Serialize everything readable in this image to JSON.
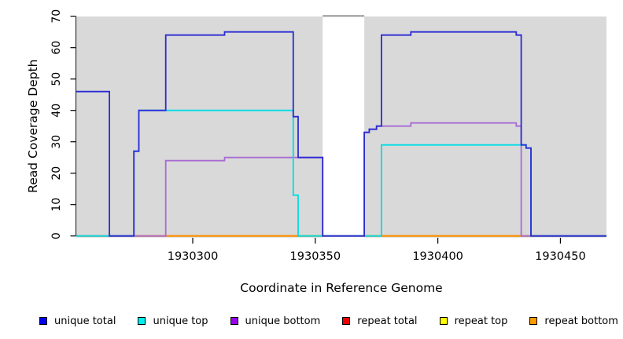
{
  "chart_data": {
    "type": "line",
    "subtype": "step-coverage",
    "title": "",
    "xlabel": "Coordinate in Reference Genome",
    "ylabel": "Read Coverage Depth",
    "xlim": [
      1930252.5,
      1930468.8
    ],
    "ylim": [
      0,
      70
    ],
    "x_ticks": [
      1930300,
      1930350,
      1930400,
      1930450
    ],
    "x_tick_labels": [
      "1930300",
      "1930350",
      "1930400",
      "1930450"
    ],
    "y_ticks": [
      0,
      10,
      20,
      30,
      40,
      50,
      60,
      70
    ],
    "y_tick_labels": [
      "0",
      "10",
      "20",
      "30",
      "40",
      "50",
      "60",
      "70"
    ],
    "grid": false,
    "legend_position": "bottom",
    "plot_background": "#d9d9d9",
    "axis_color": "#333333",
    "gap_region": {
      "x_start": 1930353,
      "x_end": 1930370,
      "fill": "#ffffff",
      "top_border": "#9a9a9a"
    },
    "series": [
      {
        "name": "repeat total",
        "color": "#dd2222",
        "points": [
          [
            1930252.5,
            0
          ],
          [
            1930468.8,
            0
          ]
        ]
      },
      {
        "name": "repeat top",
        "color": "#eeee00",
        "points": [
          [
            1930252.5,
            0
          ],
          [
            1930468.8,
            0
          ]
        ]
      },
      {
        "name": "repeat bottom",
        "color": "#ff8c00",
        "points": [
          [
            1930252.5,
            0
          ],
          [
            1930468.8,
            0
          ]
        ]
      },
      {
        "name": "unique bottom",
        "color": "#a96bd4",
        "points": [
          [
            1930252.5,
            0
          ],
          [
            1930289,
            0
          ],
          [
            1930289,
            24
          ],
          [
            1930313,
            24
          ],
          [
            1930313,
            25
          ],
          [
            1930353,
            25
          ],
          [
            1930353,
            0
          ],
          [
            1930370,
            0
          ],
          [
            1930370,
            33
          ],
          [
            1930372,
            33
          ],
          [
            1930372,
            34
          ],
          [
            1930375,
            34
          ],
          [
            1930375,
            35
          ],
          [
            1930389,
            35
          ],
          [
            1930389,
            36
          ],
          [
            1930432,
            36
          ],
          [
            1930432,
            35
          ],
          [
            1930434,
            35
          ],
          [
            1930434,
            0
          ],
          [
            1930468.8,
            0
          ]
        ]
      },
      {
        "name": "unique top",
        "color": "#00dde6",
        "points": [
          [
            1930252.5,
            0
          ],
          [
            1930276,
            0
          ],
          [
            1930276,
            27
          ],
          [
            1930278,
            27
          ],
          [
            1930278,
            40
          ],
          [
            1930341,
            40
          ],
          [
            1930341,
            13
          ],
          [
            1930343,
            13
          ],
          [
            1930343,
            0
          ],
          [
            1930377,
            0
          ],
          [
            1930377,
            29
          ],
          [
            1930436,
            29
          ],
          [
            1930436,
            28
          ],
          [
            1930438,
            28
          ],
          [
            1930438,
            0
          ],
          [
            1930468.8,
            0
          ]
        ]
      },
      {
        "name": "unique total",
        "color": "#2b2bd5",
        "points": [
          [
            1930252.5,
            46
          ],
          [
            1930266,
            46
          ],
          [
            1930266,
            0
          ],
          [
            1930276,
            0
          ],
          [
            1930276,
            27
          ],
          [
            1930278,
            27
          ],
          [
            1930278,
            40
          ],
          [
            1930289,
            40
          ],
          [
            1930289,
            64
          ],
          [
            1930313,
            64
          ],
          [
            1930313,
            65
          ],
          [
            1930341,
            65
          ],
          [
            1930341,
            38
          ],
          [
            1930343,
            38
          ],
          [
            1930343,
            25
          ],
          [
            1930353,
            25
          ],
          [
            1930353,
            0
          ],
          [
            1930370,
            0
          ],
          [
            1930370,
            33
          ],
          [
            1930372,
            33
          ],
          [
            1930372,
            34
          ],
          [
            1930375,
            34
          ],
          [
            1930375,
            35
          ],
          [
            1930377,
            35
          ],
          [
            1930377,
            64
          ],
          [
            1930389,
            64
          ],
          [
            1930389,
            65
          ],
          [
            1930432,
            65
          ],
          [
            1930432,
            64
          ],
          [
            1930434,
            64
          ],
          [
            1930434,
            29
          ],
          [
            1930436,
            29
          ],
          [
            1930436,
            28
          ],
          [
            1930438,
            28
          ],
          [
            1930438,
            0
          ],
          [
            1930468.8,
            0
          ]
        ]
      }
    ]
  },
  "legend": {
    "items": [
      {
        "label": "unique total",
        "color": "#0000ee"
      },
      {
        "label": "unique top",
        "color": "#00eeee"
      },
      {
        "label": "unique bottom",
        "color": "#9900ee"
      },
      {
        "label": "repeat total",
        "color": "#ee0000"
      },
      {
        "label": "repeat top",
        "color": "#ffff00"
      },
      {
        "label": "repeat bottom",
        "color": "#ff9900"
      }
    ]
  }
}
